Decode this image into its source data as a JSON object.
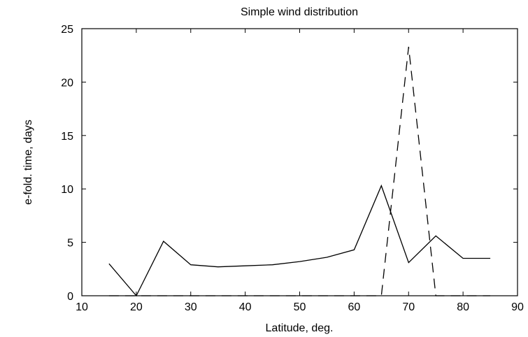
{
  "chart_data": {
    "type": "line",
    "title": "Simple wind distribution",
    "xlabel": "Latitude, deg.",
    "ylabel": "e-fold. time, days",
    "xlim": [
      10,
      90
    ],
    "ylim": [
      0,
      25
    ],
    "xticks": [
      10,
      20,
      30,
      40,
      50,
      60,
      70,
      80,
      90
    ],
    "yticks": [
      0,
      5,
      10,
      15,
      20,
      25
    ],
    "xtick_labels": [
      "10",
      "20",
      "30",
      "40",
      "50",
      "60",
      "70",
      "80",
      "90"
    ],
    "ytick_labels": [
      "0",
      "5",
      "10",
      "15",
      "20",
      "25"
    ],
    "grid": false,
    "legend": "none",
    "series": [
      {
        "style": "solid",
        "color": "#000000",
        "x": [
          15,
          20,
          25,
          30,
          35,
          40,
          45,
          50,
          55,
          60,
          65,
          70,
          75,
          80,
          85
        ],
        "y": [
          3.0,
          0.0,
          5.1,
          2.9,
          2.7,
          2.8,
          2.9,
          3.2,
          3.6,
          4.3,
          10.3,
          3.1,
          5.6,
          3.5,
          3.5
        ]
      },
      {
        "style": "dashed",
        "color": "#000000",
        "x": [
          15,
          20,
          25,
          30,
          35,
          40,
          45,
          50,
          55,
          60,
          65,
          70,
          75,
          80,
          85
        ],
        "y": [
          0,
          0,
          0,
          0,
          0,
          0,
          0,
          0,
          0,
          0,
          0,
          23.3,
          0,
          0,
          0
        ]
      }
    ]
  }
}
